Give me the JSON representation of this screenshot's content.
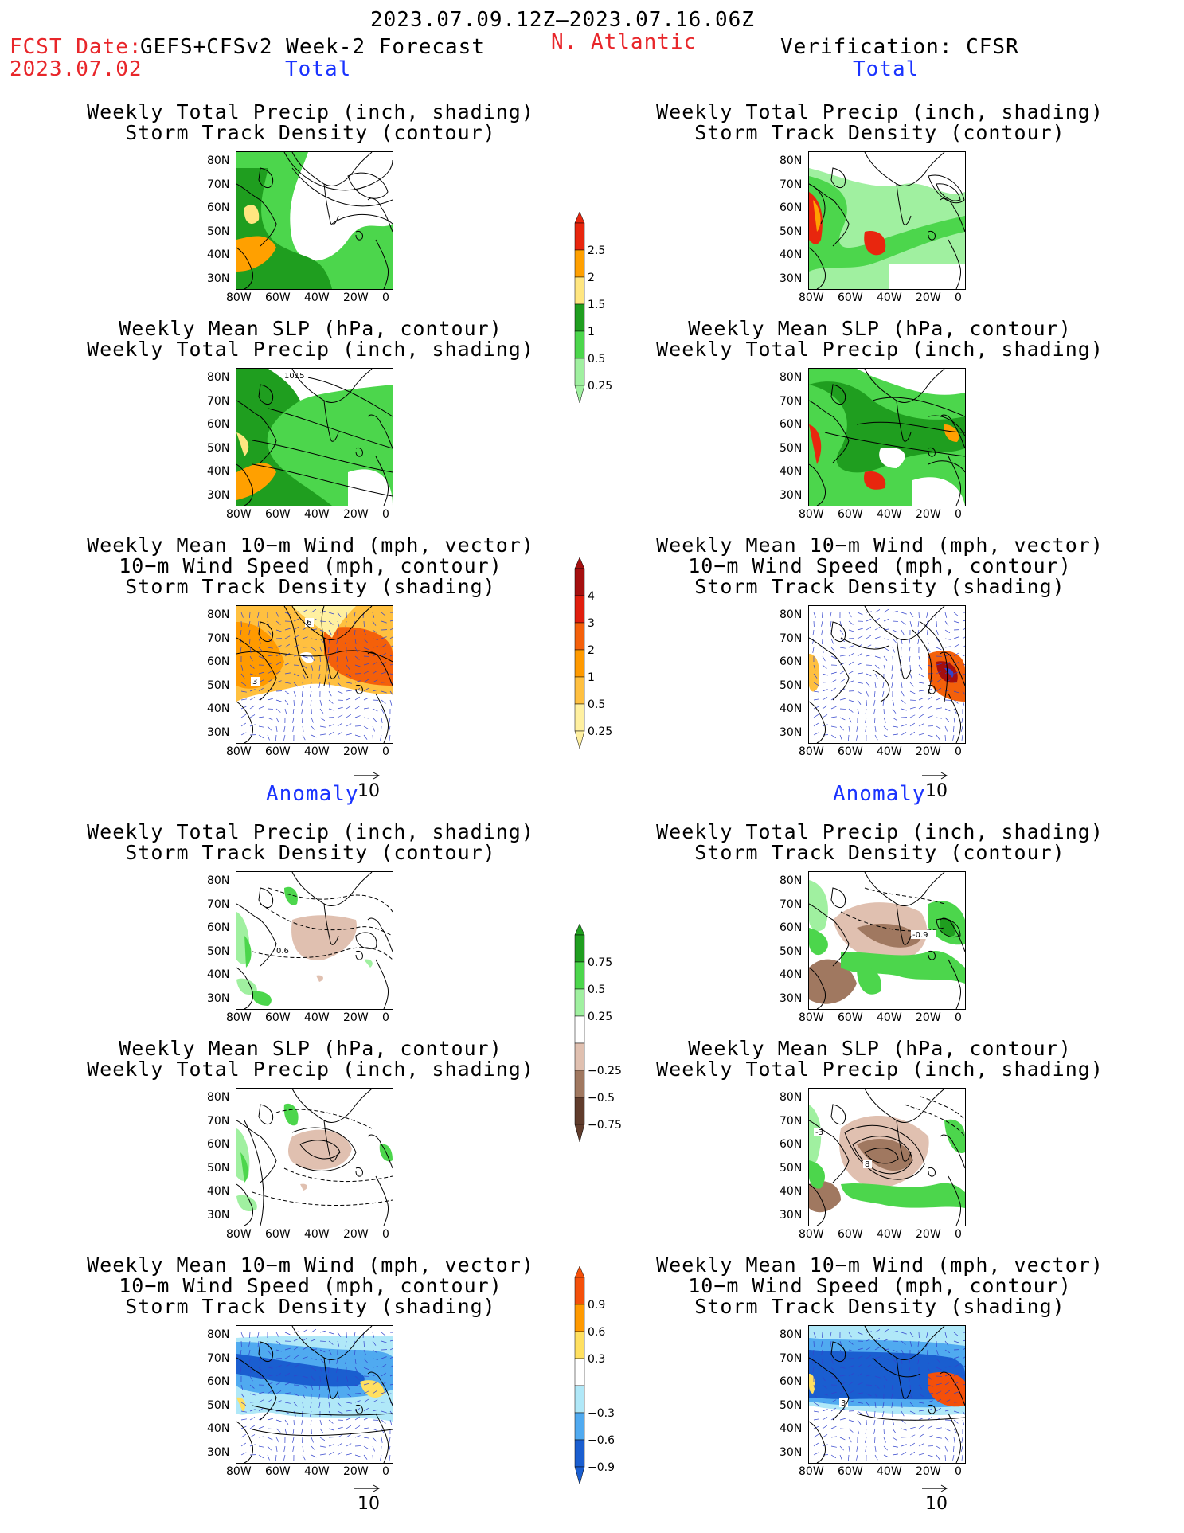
{
  "header": {
    "period": "2023.07.09.12Z–2023.07.16.06Z",
    "fcst_label": "FCST Date:",
    "fcst_date": "2023.07.02",
    "model": "GEFS+CFSv2 Week-2 Forecast",
    "region": "N. Atlantic",
    "verification": "Verification: CFSR"
  },
  "sections": {
    "total": "Total",
    "anomaly": "Anomaly"
  },
  "titles": {
    "precip_std": [
      "Weekly Total Precip (inch, shading)",
      "Storm Track Density (contour)"
    ],
    "slp_precip": [
      "Weekly Mean SLP (hPa, contour)",
      "Weekly Total Precip (inch, shading)"
    ],
    "wind_std": [
      "Weekly Mean 10-m Wind (mph, vector)",
      "10-m Wind Speed (mph, contour)",
      "Storm Track Density (shading)"
    ]
  },
  "axes": {
    "lat": [
      "80N",
      "70N",
      "60N",
      "50N",
      "40N",
      "30N"
    ],
    "lon": [
      "80W",
      "60W",
      "40W",
      "20W",
      "0"
    ]
  },
  "vector_ref": "10",
  "contour_labels": {
    "slp_fcst_total": "1015",
    "wind_fcst_total_a": "6",
    "wind_fcst_total_b": "3",
    "precip_fcst_anom": "0.6",
    "precip_ver_anom": "-0.9",
    "slp_ver_anom_a": "8",
    "slp_ver_anom_b": "-3"
  },
  "colorbars": {
    "precip_total": {
      "labels": [
        "2.5",
        "2",
        "1.5",
        "1",
        "0.5",
        "0.25"
      ],
      "colors": [
        "#e8260e",
        "#ffa000",
        "#ffe680",
        "#1f9e1f",
        "#4cd64c",
        "#a0f0a0"
      ]
    },
    "storm_total": {
      "labels": [
        "4",
        "3",
        "2",
        "1",
        "0.5",
        "0.25"
      ],
      "colors": [
        "#a50f0f",
        "#e01e0e",
        "#f4600a",
        "#ff9a00",
        "#ffc040",
        "#fff0a0"
      ]
    },
    "precip_anom": {
      "labels": [
        "0.75",
        "0.5",
        "0.25",
        "-0.25",
        "-0.5",
        "-0.75"
      ],
      "colors": [
        "#1f9e1f",
        "#4cd64c",
        "#a0f0a0",
        "#ffffff",
        "#e0c0b0",
        "#a07860",
        "#603c2c"
      ]
    },
    "storm_anom": {
      "labels": [
        "0.9",
        "0.6",
        "0.3",
        "-0.3",
        "-0.6",
        "-0.9"
      ],
      "colors": [
        "#f4500a",
        "#ff9a00",
        "#ffe060",
        "#ffffff",
        "#b0e8f8",
        "#50aaf0",
        "#1a5ed0"
      ]
    }
  }
}
